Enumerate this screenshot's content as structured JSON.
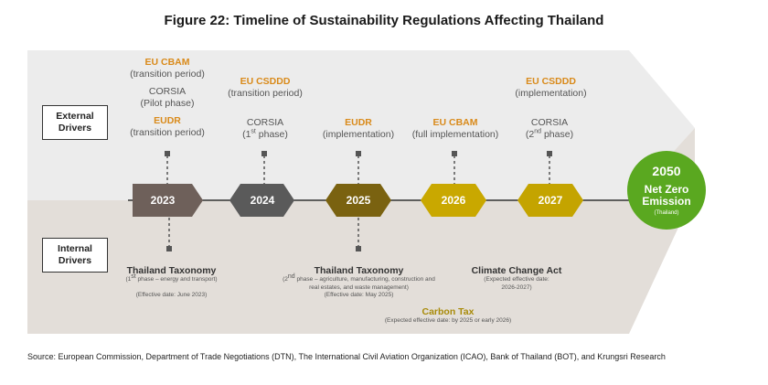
{
  "title": "Figure 22: Timeline of Sustainability Regulations Affecting Thailand",
  "labels": {
    "external": [
      "External",
      "Drivers"
    ],
    "internal": [
      "Internal",
      "Drivers"
    ]
  },
  "milestones": [
    {
      "year": "2023",
      "color": "#6e605a"
    },
    {
      "year": "2024",
      "color": "#5a5a5a"
    },
    {
      "year": "2025",
      "color": "#7a6210"
    },
    {
      "year": "2026",
      "color": "#c9a800"
    },
    {
      "year": "2027",
      "color": "#c4a400"
    }
  ],
  "goal": {
    "year": "2050",
    "line1": "Net Zero",
    "line2": "Emission",
    "sub": "(Thailand)"
  },
  "external": {
    "y2023": {
      "cbam": "EU CBAM",
      "cbam_note": "(transition period)",
      "corsia": "CORSIA",
      "corsia_note": "(Pilot phase)",
      "eudr": "EUDR",
      "eudr_note": "(transition period)"
    },
    "y2024": {
      "csddd": "EU CSDDD",
      "csddd_note": "(transition period)",
      "corsia": "CORSIA",
      "corsia_pre": "(1",
      "corsia_sup": "st",
      "corsia_post": " phase)"
    },
    "y2025": {
      "eudr": "EUDR",
      "eudr_note": "(implementation)"
    },
    "y2026": {
      "cbam": "EU CBAM",
      "cbam_note": "(full implementation)"
    },
    "y2027": {
      "csddd": "EU CSDDD",
      "csddd_note": "(implementation)",
      "corsia": "CORSIA",
      "corsia_pre": "(2",
      "corsia_sup": "nd",
      "corsia_post": " phase)"
    }
  },
  "internal": {
    "tax2023": {
      "title": "Thailand Taxonomy",
      "pre": "(1",
      "sup": "st",
      "post": " phase – energy and transport)",
      "effective": "(Effective date: June 2023)"
    },
    "tax2025": {
      "title": "Thailand Taxonomy",
      "pre": "(2",
      "sup": "nd",
      "post": " phase – agriculture, manufacturing, construction and",
      "line2": "real estates, and waste management)",
      "effective": "(Effective date: May 2025)"
    },
    "climate": {
      "title": "Climate Change Act",
      "line1": "(Expected effective date:",
      "line2": "2026-2027)"
    },
    "carbon": {
      "title": "Carbon Tax",
      "line1": "(Expected effective date: by 2025 or early 2026)"
    }
  },
  "source": "Source: European Commission, Department of Trade Negotiations (DTN), The International Civil Aviation Organization (ICAO),  Bank of Thailand (BOT), and Krungsri Research"
}
